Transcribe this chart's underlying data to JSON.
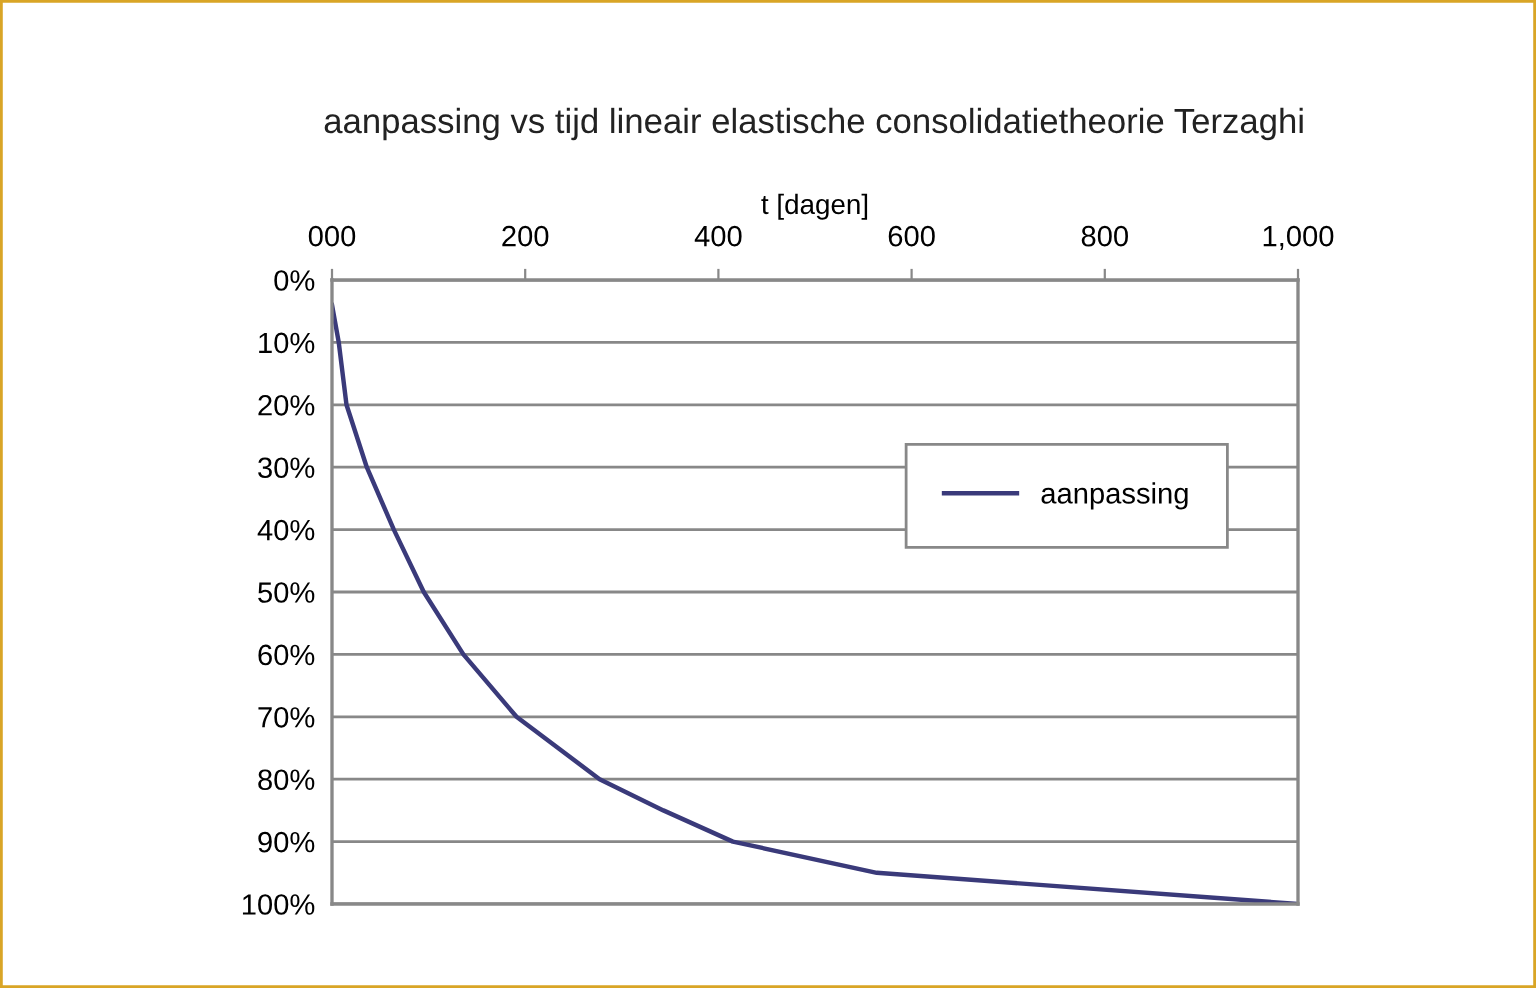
{
  "chart_data": {
    "type": "line",
    "title": "aanpassing vs tijd lineair elastische consolidatietheorie Terzaghi",
    "xlabel": "t [dagen]",
    "x": [
      0,
      7,
      15,
      36,
      64,
      95,
      136,
      191,
      277,
      343,
      415,
      564,
      1000
    ],
    "series": [
      {
        "name": "aanpassing",
        "color": "#3a3a7a",
        "values": [
          4,
          10,
          20,
          30,
          40,
          50,
          60,
          70,
          80,
          85,
          90,
          95,
          100
        ]
      }
    ],
    "xlim": [
      0,
      1000
    ],
    "xticks": [
      {
        "value": 0,
        "label": "000"
      },
      200,
      400,
      600,
      800,
      {
        "value": 1000,
        "label": "1,000"
      }
    ],
    "ylim": [
      100,
      0
    ],
    "yticks": [
      {
        "value": 0,
        "label": "0%"
      },
      {
        "value": 10,
        "label": "10%"
      },
      {
        "value": 20,
        "label": "20%"
      },
      {
        "value": 30,
        "label": "30%"
      },
      {
        "value": 40,
        "label": "40%"
      },
      {
        "value": 50,
        "label": "50%"
      },
      {
        "value": 60,
        "label": "60%"
      },
      {
        "value": 70,
        "label": "70%"
      },
      {
        "value": 80,
        "label": "80%"
      },
      {
        "value": 90,
        "label": "90%"
      },
      {
        "value": 100,
        "label": "100%"
      }
    ],
    "grid": "y",
    "legend": "right",
    "marker": "none",
    "line_style": "solid"
  }
}
